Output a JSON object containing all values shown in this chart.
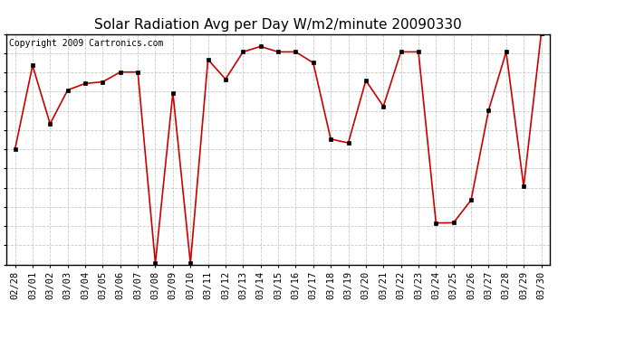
{
  "title": "Solar Radiation Avg per Day W/m2/minute 20090330",
  "copyright": "Copyright 2009 Cartronics.com",
  "labels": [
    "02/28",
    "03/01",
    "03/02",
    "03/03",
    "03/04",
    "03/05",
    "03/06",
    "03/07",
    "03/08",
    "03/09",
    "03/10",
    "03/11",
    "03/12",
    "03/13",
    "03/14",
    "03/15",
    "03/16",
    "03/17",
    "03/18",
    "03/19",
    "03/20",
    "03/21",
    "03/22",
    "03/23",
    "03/24",
    "03/25",
    "03/26",
    "03/27",
    "03/28",
    "03/29",
    "03/30"
  ],
  "values": [
    236.5,
    390.0,
    283.0,
    345.0,
    357.0,
    360.0,
    378.0,
    378.0,
    27.0,
    340.0,
    27.0,
    401.0,
    365.0,
    415.0,
    425.0,
    415.0,
    415.0,
    395.0,
    255.0,
    248.0,
    362.5,
    315.0,
    415.0,
    415.0,
    101.0,
    101.5,
    143.0,
    308.0,
    415.0,
    168.0,
    449.0
  ],
  "line_color": "#cc0000",
  "marker": "o",
  "marker_size": 3,
  "grid_color": "#bbbbbb",
  "bg_color": "#ffffff",
  "ylim_min": 25.0,
  "ylim_max": 448.0,
  "yticks": [
    25.0,
    60.2,
    95.5,
    130.8,
    166.0,
    201.2,
    236.5,
    271.8,
    307.0,
    342.2,
    377.5,
    412.8,
    448.0
  ],
  "title_fontsize": 11,
  "tick_fontsize": 7.5,
  "copyright_fontsize": 7
}
